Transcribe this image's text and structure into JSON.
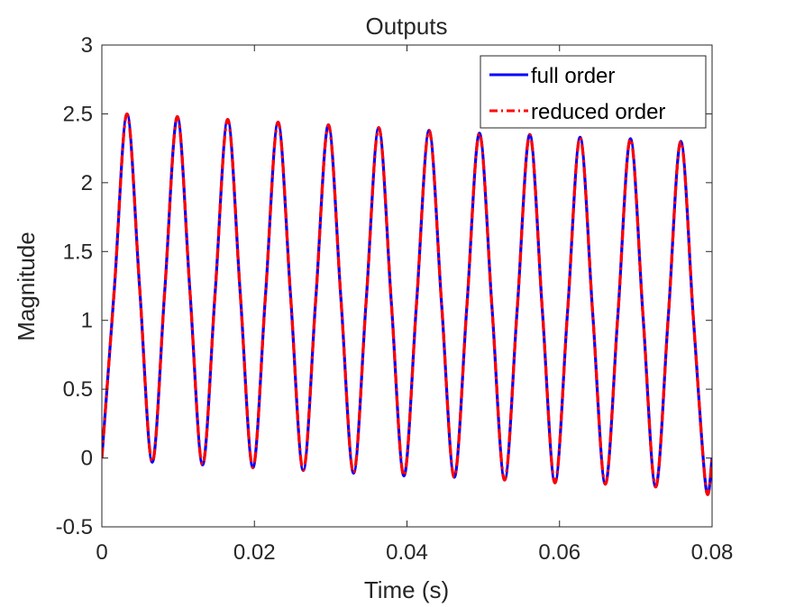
{
  "chart_data": {
    "type": "line",
    "title": "Outputs",
    "xlabel": "Time (s)",
    "ylabel": "Magnitude",
    "xlim": [
      0,
      0.08
    ],
    "ylim": [
      -0.5,
      3
    ],
    "x_ticks": [
      0,
      0.02,
      0.04,
      0.06,
      0.08
    ],
    "x_tick_labels": [
      "0",
      "0.02",
      "0.04",
      "0.06",
      "0.08"
    ],
    "y_ticks": [
      -0.5,
      0,
      0.5,
      1,
      1.5,
      2,
      2.5,
      3
    ],
    "y_tick_labels": [
      "-0.5",
      "0",
      "0.5",
      "1",
      "1.5",
      "2",
      "2.5",
      "3"
    ],
    "grid": false,
    "legend_position": "top-right",
    "series": [
      {
        "name": "full order",
        "color": "#0000ff",
        "style": "solid",
        "x": [
          0,
          0.00165,
          0.0033,
          0.00495,
          0.0066,
          0.00825,
          0.0099,
          0.01155,
          0.0132,
          0.01485,
          0.0165,
          0.01815,
          0.0198,
          0.02145,
          0.0231,
          0.02475,
          0.0264,
          0.02805,
          0.0297,
          0.03135,
          0.033,
          0.03465,
          0.0363,
          0.03795,
          0.0396,
          0.04125,
          0.0429,
          0.04455,
          0.0462,
          0.04785,
          0.0495,
          0.05115,
          0.0528,
          0.05445,
          0.0561,
          0.05775,
          0.0594,
          0.06105,
          0.0627,
          0.06435,
          0.066,
          0.06765,
          0.0693,
          0.07095,
          0.0726,
          0.07425,
          0.0759,
          0.07755,
          0.0792,
          0.08
        ],
        "y": [
          0,
          1.24,
          2.5,
          1.24,
          -0.03,
          1.22,
          2.48,
          1.21,
          -0.05,
          1.2,
          2.46,
          1.19,
          -0.07,
          1.18,
          2.44,
          1.17,
          -0.09,
          1.16,
          2.42,
          1.15,
          -0.11,
          1.14,
          2.4,
          1.13,
          -0.13,
          1.12,
          2.38,
          1.11,
          -0.14,
          1.1,
          2.36,
          1.09,
          -0.16,
          1.08,
          2.35,
          1.07,
          -0.18,
          1.06,
          2.33,
          1.05,
          -0.19,
          1.04,
          2.32,
          1.03,
          -0.21,
          1.02,
          2.3,
          1.01,
          -0.22,
          0
        ]
      },
      {
        "name": "reduced order",
        "color": "#ff0000",
        "style": "dash-dot",
        "x": [
          0,
          0.00165,
          0.0033,
          0.00495,
          0.0066,
          0.00825,
          0.0099,
          0.01155,
          0.0132,
          0.01485,
          0.0165,
          0.01815,
          0.0198,
          0.02145,
          0.0231,
          0.02475,
          0.0264,
          0.02805,
          0.0297,
          0.03135,
          0.033,
          0.03465,
          0.0363,
          0.03795,
          0.0396,
          0.04125,
          0.0429,
          0.04455,
          0.0462,
          0.04785,
          0.0495,
          0.05115,
          0.0528,
          0.05445,
          0.0561,
          0.05775,
          0.0594,
          0.06105,
          0.0627,
          0.06435,
          0.066,
          0.06765,
          0.0693,
          0.07095,
          0.0726,
          0.07425,
          0.0759,
          0.07755,
          0.0792,
          0.08
        ],
        "y": [
          0,
          1.24,
          2.5,
          1.24,
          -0.03,
          1.22,
          2.48,
          1.21,
          -0.05,
          1.2,
          2.46,
          1.19,
          -0.07,
          1.18,
          2.44,
          1.17,
          -0.09,
          1.16,
          2.42,
          1.15,
          -0.11,
          1.14,
          2.4,
          1.13,
          -0.13,
          1.12,
          2.38,
          1.11,
          -0.14,
          1.1,
          2.36,
          1.09,
          -0.16,
          1.08,
          2.35,
          1.07,
          -0.18,
          1.06,
          2.33,
          1.05,
          -0.19,
          1.04,
          2.32,
          1.03,
          -0.21,
          1.02,
          2.3,
          1.01,
          -0.22,
          0
        ]
      }
    ]
  }
}
